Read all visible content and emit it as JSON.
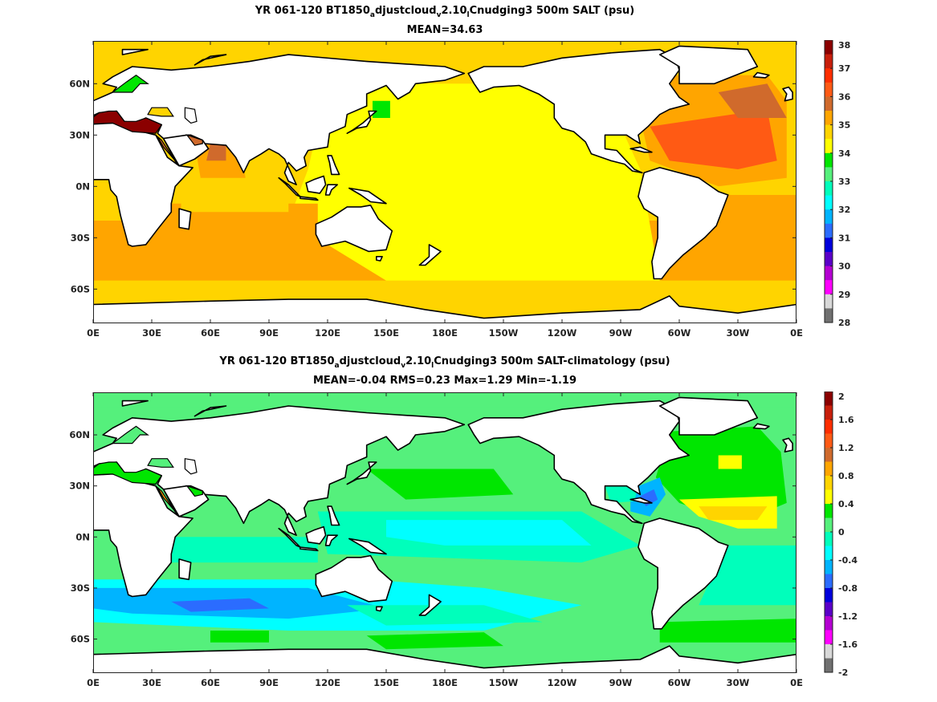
{
  "panels": [
    {
      "title_parts": [
        "YR 061-120 BT1850",
        "a",
        "djustcloud",
        "v",
        "2.10",
        "l",
        "Cnudging3 500m SALT (psu)"
      ],
      "stats": "MEAN=34.63",
      "colorbar": {
        "labels": [
          "38",
          "37",
          "36",
          "35",
          "34",
          "33",
          "32",
          "31",
          "30",
          "29",
          "28"
        ],
        "colors": [
          "#8b0000",
          "#c81e0b",
          "#ff2d00",
          "#ff5a14",
          "#d06a2c",
          "#ffa500",
          "#ffd400",
          "#ffff00",
          "#00e600",
          "#55f07c",
          "#00ffbb",
          "#00ffff",
          "#00b4ff",
          "#2b6cff",
          "#0000dc",
          "#5a00c8",
          "#b400d2",
          "#ff00ff",
          "#d8d8d8",
          "#707070"
        ]
      },
      "field": "absolute"
    },
    {
      "title_parts": [
        "YR 061-120 BT1850",
        "a",
        "djustcloud",
        "v",
        "2.10",
        "l",
        "Cnudging3 500m SALT-climatology (psu)"
      ],
      "stats": "MEAN=-0.04   RMS=0.23   Max=1.29   Min=-1.19",
      "colorbar": {
        "labels": [
          "2",
          "1.6",
          "1.2",
          "0.8",
          "0.4",
          "0",
          "-0.4",
          "-0.8",
          "-1.2",
          "-1.6",
          "-2"
        ],
        "colors": [
          "#8b0000",
          "#c81e0b",
          "#ff2d00",
          "#ff5a14",
          "#d06a2c",
          "#ffa500",
          "#ffd400",
          "#ffff00",
          "#00e600",
          "#55f07c",
          "#00ffbb",
          "#00ffff",
          "#00b4ff",
          "#2b6cff",
          "#0000dc",
          "#5a00c8",
          "#b400d2",
          "#ff00ff",
          "#d8d8d8",
          "#707070"
        ]
      },
      "field": "anomaly"
    }
  ],
  "axes": {
    "lat_labels": [
      "60N",
      "30N",
      "0N",
      "30S",
      "60S"
    ],
    "lon_labels": [
      "0E",
      "30E",
      "60E",
      "90E",
      "120E",
      "150E",
      "180E",
      "150W",
      "120W",
      "90W",
      "60W",
      "30W",
      "0E"
    ]
  },
  "colors": {
    "land": "#ffffff",
    "coast": "#000000"
  }
}
